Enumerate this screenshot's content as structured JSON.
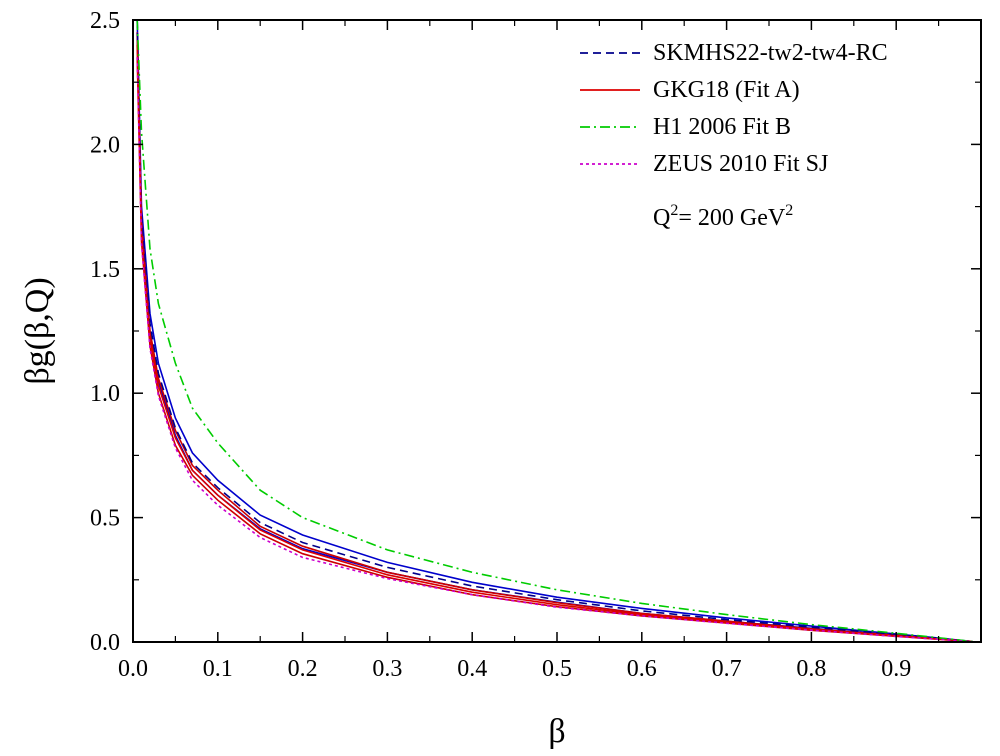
{
  "chart_data": {
    "type": "line",
    "xlabel": "β",
    "ylabel": "βg(β,Q)",
    "xlim": [
      0.0,
      1.0
    ],
    "ylim": [
      0.0,
      2.5
    ],
    "x_ticks": [
      0.0,
      0.1,
      0.2,
      0.3,
      0.4,
      0.5,
      0.6,
      0.7,
      0.8,
      0.9
    ],
    "x_tick_labels": [
      "0.0",
      "0.1",
      "0.2",
      "0.3",
      "0.4",
      "0.5",
      "0.6",
      "0.7",
      "0.8",
      "0.9"
    ],
    "y_ticks": [
      0.0,
      0.5,
      1.0,
      1.5,
      2.0,
      2.5
    ],
    "y_tick_labels": [
      "0.0",
      "0.5",
      "1.0",
      "1.5",
      "2.0",
      "2.5"
    ],
    "annotation": {
      "base": "Q",
      "sup1": "2",
      "mid": "= 200 GeV",
      "sup2": "2"
    },
    "legend_position": "top-right",
    "grid": false,
    "series": [
      {
        "name": "SKMHS22-tw2-tw4-RC",
        "color": "#00008B",
        "style": "dashed",
        "x": [
          0.005,
          0.01,
          0.02,
          0.03,
          0.05,
          0.07,
          0.1,
          0.15,
          0.2,
          0.3,
          0.4,
          0.5,
          0.6,
          0.7,
          0.8,
          0.9,
          0.95,
          0.99
        ],
        "y": [
          2.5,
          1.7,
          1.28,
          1.08,
          0.86,
          0.72,
          0.62,
          0.48,
          0.4,
          0.3,
          0.225,
          0.17,
          0.125,
          0.09,
          0.06,
          0.03,
          0.015,
          0.002
        ]
      },
      {
        "name": "GKG18 (Fit A)",
        "color": "#DD0000",
        "style": "solid",
        "x": [
          0.005,
          0.01,
          0.02,
          0.03,
          0.05,
          0.07,
          0.1,
          0.15,
          0.2,
          0.3,
          0.4,
          0.5,
          0.6,
          0.7,
          0.8,
          0.9,
          0.95,
          0.99
        ],
        "y": [
          2.4,
          1.65,
          1.22,
          1.03,
          0.82,
          0.69,
          0.59,
          0.45,
          0.37,
          0.27,
          0.2,
          0.15,
          0.11,
          0.08,
          0.05,
          0.025,
          0.012,
          0.002
        ]
      },
      {
        "name": "H1 2006 Fit B",
        "color": "#00CC00",
        "style": "dashdot",
        "x": [
          0.005,
          0.01,
          0.02,
          0.03,
          0.05,
          0.07,
          0.1,
          0.15,
          0.2,
          0.3,
          0.4,
          0.5,
          0.6,
          0.7,
          0.8,
          0.9,
          0.95,
          0.99
        ],
        "y": [
          2.5,
          2.05,
          1.58,
          1.36,
          1.12,
          0.94,
          0.8,
          0.61,
          0.5,
          0.37,
          0.28,
          0.21,
          0.155,
          0.11,
          0.07,
          0.035,
          0.017,
          0.002
        ]
      },
      {
        "name": "ZEUS 2010 Fit SJ",
        "color": "#CC00CC",
        "style": "dotted",
        "x": [
          0.005,
          0.01,
          0.02,
          0.03,
          0.05,
          0.07,
          0.1,
          0.15,
          0.2,
          0.3,
          0.4,
          0.5,
          0.6,
          0.7,
          0.8,
          0.9,
          0.95,
          0.99
        ],
        "y": [
          2.35,
          1.6,
          1.18,
          0.99,
          0.78,
          0.65,
          0.55,
          0.42,
          0.34,
          0.255,
          0.19,
          0.14,
          0.105,
          0.075,
          0.048,
          0.022,
          0.011,
          0.001
        ]
      }
    ],
    "bands": [
      {
        "color": "#0000CC",
        "x": [
          0.005,
          0.01,
          0.02,
          0.03,
          0.05,
          0.07,
          0.1,
          0.15,
          0.2,
          0.3,
          0.4,
          0.5,
          0.6,
          0.7,
          0.8,
          0.9,
          0.95,
          0.99
        ],
        "upper": [
          2.5,
          1.75,
          1.32,
          1.12,
          0.9,
          0.76,
          0.65,
          0.51,
          0.43,
          0.32,
          0.24,
          0.18,
          0.135,
          0.097,
          0.064,
          0.032,
          0.016,
          0.002
        ],
        "lower": [
          2.45,
          1.66,
          1.24,
          1.05,
          0.83,
          0.69,
          0.59,
          0.455,
          0.375,
          0.28,
          0.21,
          0.16,
          0.115,
          0.083,
          0.055,
          0.027,
          0.013,
          0.001
        ]
      },
      {
        "color": "#CC0000",
        "x": [
          0.005,
          0.01,
          0.02,
          0.03,
          0.05,
          0.07,
          0.1,
          0.15,
          0.2,
          0.3,
          0.4,
          0.5,
          0.6,
          0.7,
          0.8,
          0.9,
          0.95,
          0.99
        ],
        "upper": [
          2.45,
          1.69,
          1.25,
          1.06,
          0.85,
          0.71,
          0.61,
          0.465,
          0.385,
          0.28,
          0.21,
          0.158,
          0.115,
          0.084,
          0.053,
          0.027,
          0.013,
          0.002
        ],
        "lower": [
          2.35,
          1.61,
          1.19,
          1.0,
          0.79,
          0.67,
          0.57,
          0.435,
          0.355,
          0.26,
          0.19,
          0.142,
          0.105,
          0.076,
          0.047,
          0.023,
          0.011,
          0.001
        ]
      }
    ]
  }
}
